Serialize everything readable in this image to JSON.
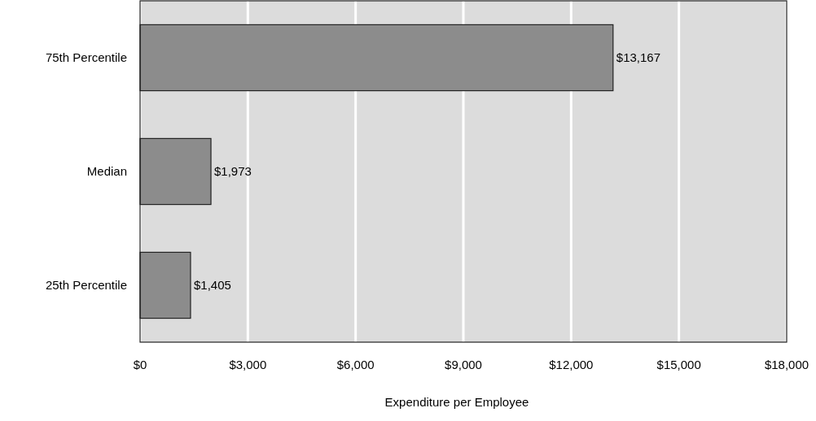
{
  "chart_data": {
    "type": "bar",
    "orientation": "horizontal",
    "categories": [
      "75th Percentile",
      "Median",
      "25th Percentile"
    ],
    "values": [
      13167,
      1973,
      1405
    ],
    "color": "#8c8c8c",
    "value_labels": [
      "$13,167",
      "$1,973",
      "$1,405"
    ],
    "xlabel": "Expenditure per Employee",
    "xlim": [
      0,
      18000
    ],
    "xticks": [
      {
        "value": 0,
        "label": "$0"
      },
      {
        "value": 3000,
        "label": "$3,000"
      },
      {
        "value": 6000,
        "label": "$6,000"
      },
      {
        "value": 9000,
        "label": "$9,000"
      },
      {
        "value": 12000,
        "label": "$12,000"
      },
      {
        "value": 15000,
        "label": "$15,000"
      },
      {
        "value": 18000,
        "label": "$18,000"
      }
    ],
    "grid": "x"
  }
}
